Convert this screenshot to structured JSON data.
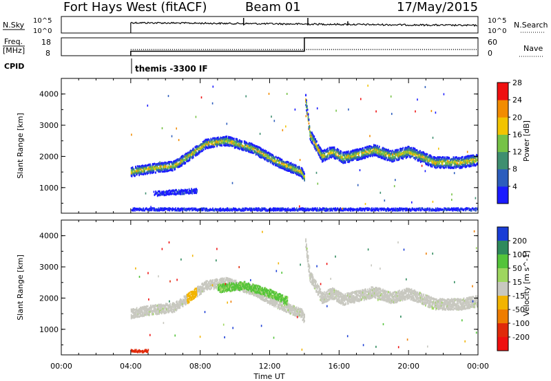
{
  "header": {
    "station": "Fort Hays West (fitACF)",
    "beam": "Beam 01",
    "date": "17/May/2015"
  },
  "params": {
    "nsky_label": "N.Sky",
    "nsky_ticks": [
      "10^5",
      "10^0"
    ],
    "nsearch_label": "N.Search",
    "nsearch_ticks": [
      "10^5",
      "10^0"
    ],
    "freq_label_1": "Freq.",
    "freq_label_2": "[MHz]",
    "freq_ticks": [
      "18",
      "8"
    ],
    "nave_label": "Nave",
    "nave_ticks": [
      "60",
      "0"
    ],
    "cpid_label": "CPID",
    "cpid_value": "themis -3300 IF",
    "freq_step_time_hours": 14.0,
    "freq_before_mhz": 10.5,
    "freq_after_mhz": 18.0
  },
  "chart_data": [
    {
      "type": "heatmap",
      "title": "",
      "xlabel": "Time UT",
      "ylabel": "Slant Range [km]",
      "xlim_hours": [
        0,
        24
      ],
      "ylim_km": [
        180,
        4500
      ],
      "x_tick_labels": [
        "00:00",
        "04:00",
        "08:00",
        "12:00",
        "16:00",
        "20:00",
        "00:00"
      ],
      "y_tick_labels": [
        "1000",
        "2000",
        "3000",
        "4000"
      ],
      "colorbar": {
        "label": "Power [dB]",
        "tick_labels": [
          "4",
          "8",
          "12",
          "16",
          "20",
          "24",
          "28"
        ],
        "colors": [
          "#1a1aff",
          "#2c5dbd",
          "#3f8f70",
          "#76c246",
          "#f2c400",
          "#f28c00",
          "#ef1010"
        ]
      },
      "bands": [
        {
          "name": "main_echo",
          "t": [
            4.0,
            5.0,
            6.5,
            7.3,
            8.3,
            9.5,
            11.0,
            12.5,
            13.8,
            14.0
          ],
          "range_km": [
            1500,
            1600,
            1700,
            2000,
            2400,
            2500,
            2250,
            1800,
            1500,
            1300
          ],
          "width_km": 300
        },
        {
          "name": "post_gap_echo",
          "t": [
            14.05,
            14.3,
            15.0,
            15.6,
            16.2,
            17.0,
            18.0,
            19.0,
            20.0,
            21.5,
            23.0,
            24.0
          ],
          "range_km": [
            3800,
            2700,
            2000,
            2150,
            1950,
            2050,
            2200,
            2000,
            2150,
            1800,
            1800,
            1900
          ],
          "width_km": 350
        },
        {
          "name": "near_range_echo",
          "t": [
            4.0,
            24.0
          ],
          "range_km": [
            300,
            300
          ],
          "width_km": 80
        },
        {
          "name": "weak_echo_1000km",
          "t": [
            5.3,
            7.8
          ],
          "range_km": [
            800,
            900
          ],
          "width_km": 150
        }
      ]
    },
    {
      "type": "heatmap",
      "title": "",
      "xlabel": "Time UT",
      "ylabel": "Slant Range [km]",
      "xlim_hours": [
        0,
        24
      ],
      "ylim_km": [
        180,
        4500
      ],
      "x_tick_labels": [
        "00:00",
        "04:00",
        "08:00",
        "12:00",
        "16:00",
        "20:00",
        "00:00"
      ],
      "y_tick_labels": [
        "1000",
        "2000",
        "3000",
        "4000"
      ],
      "colorbar": {
        "label": "Velocity [m s^-1]",
        "tick_labels": [
          "200",
          "100",
          "50",
          "15",
          "-15",
          "-50",
          "-100",
          "-200"
        ],
        "colors": [
          "#1a3dd6",
          "#2e8a5c",
          "#54c43a",
          "#9ed65f",
          "#c8c8c0",
          "#f2b400",
          "#ee7d00",
          "#e02a0a",
          "#ee0f0f"
        ]
      },
      "bands": [
        {
          "name": "main_echo_groundscatter",
          "t": [
            4.0,
            5.0,
            6.5,
            7.3,
            8.3,
            9.5,
            11.0,
            12.5,
            13.8,
            14.0
          ],
          "range_km": [
            1500,
            1600,
            1700,
            2000,
            2400,
            2500,
            2250,
            1800,
            1500,
            1300
          ],
          "width_km": 300
        },
        {
          "name": "post_gap_groundscatter",
          "t": [
            14.05,
            14.3,
            15.0,
            15.6,
            16.2,
            17.0,
            18.0,
            19.0,
            20.0,
            21.5,
            23.0,
            24.0
          ],
          "range_km": [
            3800,
            2700,
            2000,
            2150,
            1950,
            2050,
            2200,
            2000,
            2150,
            1800,
            1800,
            1900
          ],
          "width_km": 350
        },
        {
          "name": "ionospheric_positive_velocity",
          "t": [
            9.0,
            10.5,
            12.0,
            13.0
          ],
          "range_km": [
            2300,
            2400,
            2150,
            1900
          ],
          "width_km": 250
        },
        {
          "name": "near_range_echo",
          "t": [
            4.0,
            5.0
          ],
          "range_km": [
            300,
            300
          ],
          "width_km": 80
        }
      ]
    }
  ]
}
